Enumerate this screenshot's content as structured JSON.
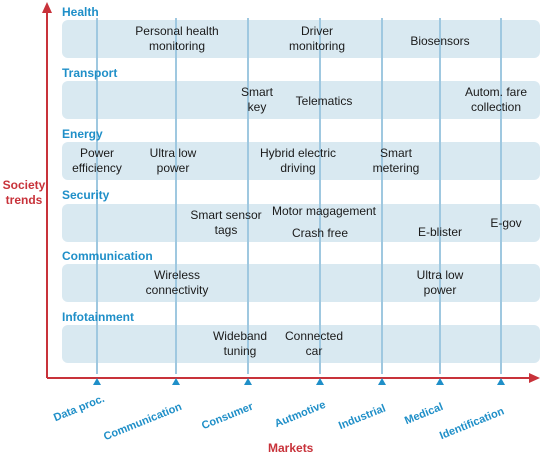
{
  "axes": {
    "y_title_line1": "Society",
    "y_title_line2": "trends",
    "x_title": "Markets"
  },
  "categories": [
    {
      "name": "Health"
    },
    {
      "name": "Transport"
    },
    {
      "name": "Energy"
    },
    {
      "name": "Security"
    },
    {
      "name": "Communication"
    },
    {
      "name": "Infotainment"
    }
  ],
  "markets": [
    "Data proc.",
    "Communication",
    "Consumer",
    "Autmotive",
    "Industrial",
    "Medical",
    "Identification"
  ],
  "items": {
    "health": [
      {
        "l1": "Personal health",
        "l2": "monitoring"
      },
      {
        "l1": "Driver",
        "l2": "monitoring"
      },
      {
        "l1": "Biosensors"
      }
    ],
    "transport": [
      {
        "l1": "Smart",
        "l2": "key"
      },
      {
        "l1": "Telematics"
      },
      {
        "l1": "Autom. fare",
        "l2": "collection"
      }
    ],
    "energy": [
      {
        "l1": "Power",
        "l2": "efficiency"
      },
      {
        "l1": "Ultra low",
        "l2": "power"
      },
      {
        "l1": "Hybrid electric",
        "l2": "driving"
      },
      {
        "l1": "Smart",
        "l2": "metering"
      }
    ],
    "security": [
      {
        "l1": "Smart sensor",
        "l2": "tags"
      },
      {
        "l1": "Motor magagement"
      },
      {
        "l1": "Crash free"
      },
      {
        "l1": "E-blister"
      },
      {
        "l1": "E-gov"
      }
    ],
    "communication": [
      {
        "l1": "Wireless",
        "l2": "connectivity"
      },
      {
        "l1": "Ultra low",
        "l2": "power"
      }
    ],
    "infotainment": [
      {
        "l1": "Wideband",
        "l2": "tuning"
      },
      {
        "l1": "Connected",
        "l2": "car"
      }
    ]
  },
  "colors": {
    "category_text": "#1f8fc8",
    "axis": "#c8323a",
    "band": "#d9e9f1",
    "grid_line": "#9fc8e0"
  }
}
